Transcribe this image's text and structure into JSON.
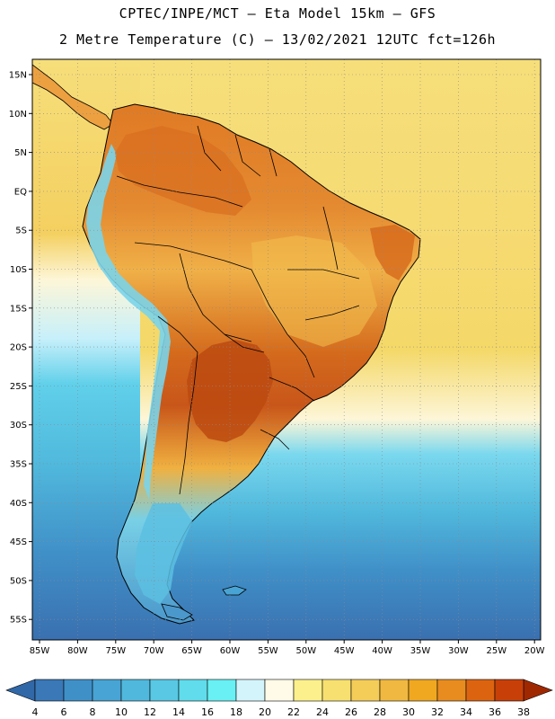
{
  "header": {
    "line1": "CPTEC/INPE/MCT –  Eta Model 15km – GFS",
    "line2": "2 Metre Temperature (C) – 13/02/2021 12UTC fct=126h"
  },
  "map": {
    "lat_ticks": [
      "15N",
      "10N",
      "5N",
      "EQ",
      "5S",
      "10S",
      "15S",
      "20S",
      "25S",
      "30S",
      "35S",
      "40S",
      "45S",
      "50S",
      "55S"
    ],
    "lon_ticks": [
      "85W",
      "80W",
      "75W",
      "70W",
      "65W",
      "60W",
      "55W",
      "50W",
      "45W",
      "40W",
      "35W",
      "30W",
      "25W",
      "20W"
    ]
  },
  "colorbar": {
    "labels": [
      "4",
      "6",
      "8",
      "10",
      "12",
      "14",
      "16",
      "18",
      "20",
      "22",
      "24",
      "26",
      "28",
      "30",
      "32",
      "34",
      "36",
      "38"
    ],
    "colors": [
      "#3a78b8",
      "#4090c8",
      "#48a4d4",
      "#50b8dc",
      "#58c8e4",
      "#60dcec",
      "#68f0f4",
      "#d4f4fc",
      "#fffbe8",
      "#fcf08c",
      "#f8e070",
      "#f4cc58",
      "#f0b840",
      "#f0a820",
      "#e88c20",
      "#dc6410",
      "#c84008",
      "#b03000"
    ],
    "low_arrow_color": "#3068a8",
    "high_arrow_color": "#a02800"
  },
  "palette": {
    "ocean_north": "#f6de7a",
    "ocean_south_cold": "#3a78b8",
    "land_hot": "#d46a1c",
    "land_warm": "#ecae48",
    "andes_cold": "#7ad2e8"
  }
}
